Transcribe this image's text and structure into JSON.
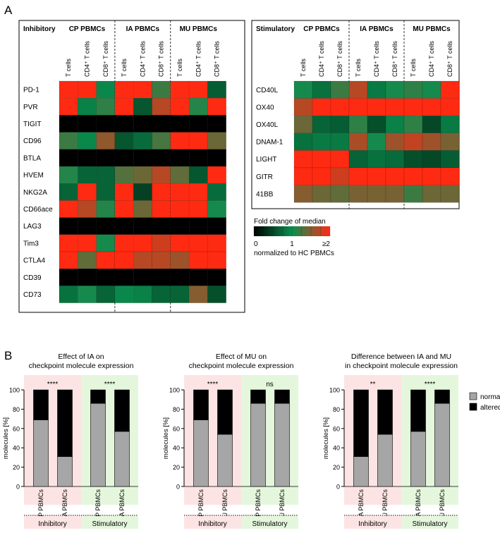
{
  "panels": {
    "a": "A",
    "b": "B"
  },
  "colors": {
    "black": "#000000",
    "green": "#0a8f4f",
    "red": "#ff2a12",
    "inhibitory_bg": "#fde4e4",
    "stimulatory_bg": "#e4f7dc",
    "normal": "#a6a6a6",
    "altered": "#000000"
  },
  "heatmap_inhibitory": {
    "corner_label": "Inhibitory",
    "groups": [
      "CP PBMCs",
      "IA PBMCs",
      "MU PBMCs"
    ],
    "columns": [
      "T cells",
      "CD4⁺ T cells",
      "CD8⁺ T cells"
    ],
    "rows": [
      {
        "name": "PD-1",
        "values": [
          2.0,
          2.0,
          0.95,
          2.0,
          2.0,
          1.2,
          2.0,
          2.0,
          0.65
        ]
      },
      {
        "name": "PVR",
        "values": [
          2.0,
          0.9,
          1.15,
          2.0,
          0.6,
          1.7,
          2.0,
          1.1,
          2.0
        ]
      },
      {
        "name": "TIGIT",
        "values": [
          0,
          0,
          0,
          0,
          0,
          0,
          0,
          0,
          0
        ]
      },
      {
        "name": "CD96",
        "values": [
          1.2,
          0.95,
          1.55,
          0.6,
          0.75,
          1.25,
          2.0,
          2.0,
          1.4
        ]
      },
      {
        "name": "BTLA",
        "values": [
          0,
          0,
          0,
          0,
          0,
          0,
          0,
          0,
          0
        ]
      },
      {
        "name": "HVEM",
        "values": [
          1.1,
          0.7,
          0.7,
          1.3,
          1.4,
          1.7,
          1.35,
          0.6,
          2.0
        ]
      },
      {
        "name": "NKG2A",
        "values": [
          0.7,
          2.0,
          0.7,
          2.0,
          0.45,
          2.0,
          2.0,
          2.0,
          0.75
        ]
      },
      {
        "name": "CD66ace",
        "values": [
          2.0,
          1.7,
          1.1,
          2.0,
          1.4,
          2.0,
          2.0,
          2.0,
          1.05
        ]
      },
      {
        "name": "LAG3",
        "values": [
          0,
          0,
          0,
          0,
          0,
          0,
          0,
          0,
          0
        ]
      },
      {
        "name": "Tim3",
        "values": [
          2.0,
          2.0,
          1.05,
          2.0,
          2.0,
          1.8,
          2.0,
          2.0,
          2.0
        ]
      },
      {
        "name": "CTLA4",
        "values": [
          2.0,
          1.35,
          2.0,
          2.0,
          1.7,
          1.7,
          1.6,
          2.0,
          2.0
        ]
      },
      {
        "name": "CD39",
        "values": [
          0,
          0,
          0,
          0,
          0,
          0,
          0,
          0,
          0
        ]
      },
      {
        "name": "CD73",
        "values": [
          0.8,
          1.05,
          0.7,
          0.95,
          0.9,
          0.7,
          0.7,
          1.5,
          0.55
        ]
      }
    ]
  },
  "heatmap_stimulatory": {
    "corner_label": "Stimulatory",
    "groups": [
      "CP PBMCs",
      "IA PBMCs",
      "MU PBMCs"
    ],
    "columns": [
      "T cells",
      "CD4⁺ T cells",
      "CD8⁺ T cells"
    ],
    "rows": [
      {
        "name": "CD40L",
        "values": [
          1.05,
          0.8,
          1.2,
          1.7,
          0.85,
          1.05,
          1.15,
          1.05,
          2.0
        ]
      },
      {
        "name": "OX40",
        "values": [
          1.7,
          2.0,
          2.0,
          2.0,
          2.0,
          2.0,
          2.0,
          2.0,
          2.0
        ]
      },
      {
        "name": "OX40L",
        "values": [
          1.4,
          0.7,
          0.65,
          1.15,
          0.55,
          0.9,
          1.15,
          0.5,
          0.85
        ]
      },
      {
        "name": "DNAM-1",
        "values": [
          0.8,
          0.85,
          0.85,
          1.65,
          1.05,
          1.6,
          1.75,
          1.6,
          1.45
        ]
      },
      {
        "name": "LIGHT",
        "values": [
          2.0,
          2.0,
          2.0,
          0.7,
          0.8,
          0.75,
          0.55,
          0.5,
          0.65
        ]
      },
      {
        "name": "GITR",
        "values": [
          2.0,
          2.0,
          1.8,
          2.0,
          2.0,
          2.0,
          2.0,
          2.0,
          2.0
        ]
      },
      {
        "name": "41BB",
        "values": [
          1.5,
          1.4,
          1.35,
          1.45,
          1.45,
          1.45,
          1.2,
          1.4,
          1.4
        ]
      }
    ]
  },
  "legend": {
    "title": "Fold change of median",
    "tick_min": "0",
    "tick_mid": "1",
    "tick_max": "≥2",
    "subtitle": "normalized to HC PBMCs"
  },
  "bar_legend": {
    "normal": "normal",
    "altered": "altered"
  },
  "section_labels": {
    "inhibitory": "Inhibitory",
    "stimulatory": "Stimulatory"
  },
  "chart_data": [
    {
      "type": "bar",
      "title": "Effect of IA on checkpoint molecule expression",
      "title_lines": [
        "Effect of IA on",
        "checkpoint molecule expression"
      ],
      "categories": [
        "CP PBMCs",
        "IA PBMCs",
        "CP PBMCs",
        "IA PBMCs"
      ],
      "groups": [
        "Inhibitory",
        "Stimulatory"
      ],
      "series": [
        {
          "name": "normal",
          "values": [
            69,
            31,
            86,
            57
          ]
        },
        {
          "name": "altered",
          "values": [
            31,
            69,
            14,
            43
          ]
        }
      ],
      "significance": [
        "****",
        "****"
      ],
      "ylabel": "molecules [%]",
      "yticks": [
        0,
        20,
        40,
        60,
        80,
        100
      ],
      "ylim": [
        0,
        100
      ]
    },
    {
      "type": "bar",
      "title": "Effect of MU on checkpoint molecule expression",
      "title_lines": [
        "Effect of MU on",
        "checkpoint molecule expression"
      ],
      "categories": [
        "CP PBMCs",
        "MU PBMCs",
        "CP PBMCs",
        "MU PBMCs"
      ],
      "groups": [
        "Inhibitory",
        "Stimulatory"
      ],
      "series": [
        {
          "name": "normal",
          "values": [
            69,
            54,
            86,
            86
          ]
        },
        {
          "name": "altered",
          "values": [
            31,
            46,
            14,
            14
          ]
        }
      ],
      "significance": [
        "****",
        "ns"
      ],
      "ylabel": "molecules [%]",
      "yticks": [
        0,
        20,
        40,
        60,
        80,
        100
      ],
      "ylim": [
        0,
        100
      ]
    },
    {
      "type": "bar",
      "title": "Difference between IA and MU in checkpoint molecule expression",
      "title_lines": [
        "Difference between IA and MU",
        "in checkpoint molecule expression"
      ],
      "categories": [
        "IA PBMCs",
        "MU PBMCs",
        "IA PBMCs",
        "MU PBMCs"
      ],
      "groups": [
        "Inhibitory",
        "Stimulatory"
      ],
      "series": [
        {
          "name": "normal",
          "values": [
            31,
            54,
            57,
            86
          ]
        },
        {
          "name": "altered",
          "values": [
            69,
            46,
            43,
            14
          ]
        }
      ],
      "significance": [
        "**",
        "****"
      ],
      "ylabel": "molecules [%]",
      "yticks": [
        0,
        20,
        40,
        60,
        80,
        100
      ],
      "ylim": [
        0,
        100
      ]
    }
  ]
}
